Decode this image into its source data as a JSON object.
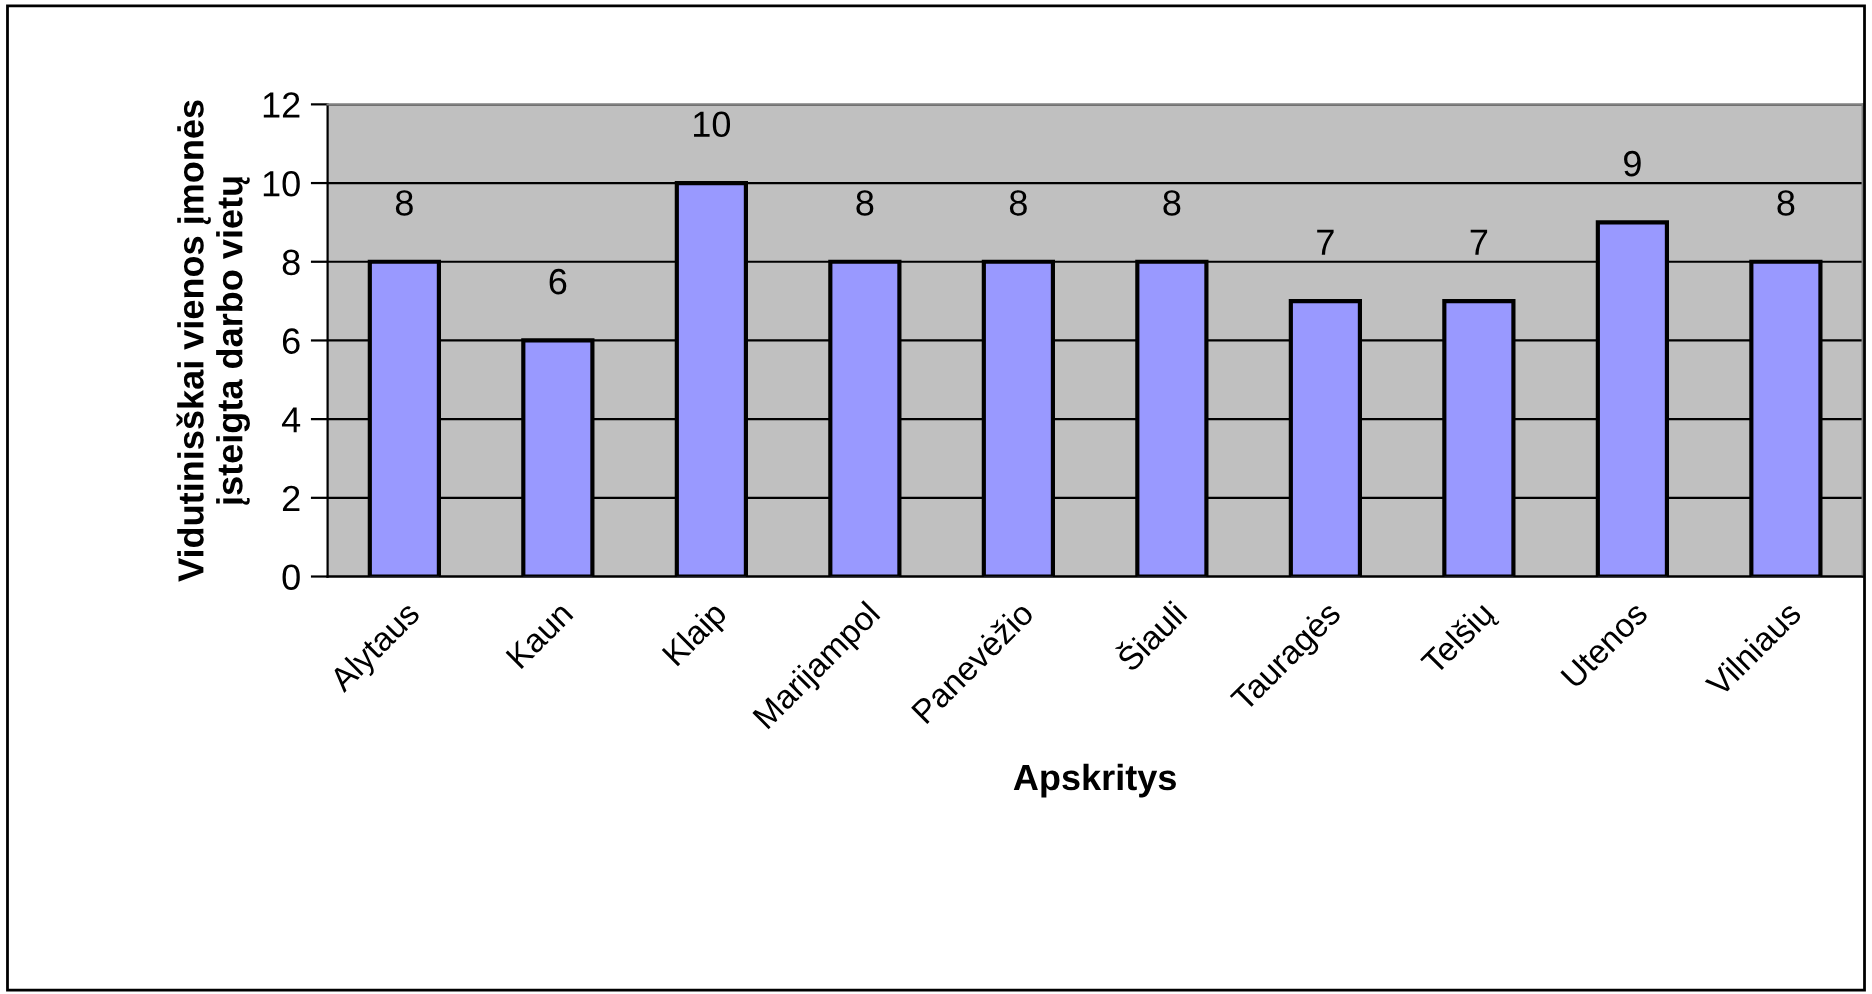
{
  "chart_data": {
    "type": "bar",
    "xlabel": "Apskritys",
    "ylabel": "Vidutinisškai vienos įmonės\nįsteigta darbo vietų",
    "categories": [
      "Alytaus",
      "Kaun",
      "Klaip",
      "Marijampol",
      "Panevėžio",
      "Šiauli",
      "Tauragės",
      "Telšių",
      "Utenos",
      "Vilniaus"
    ],
    "values": [
      8,
      6,
      10,
      8,
      8,
      8,
      7,
      7,
      9,
      8
    ],
    "color": "#9999ff",
    "ylim": [
      0,
      12
    ],
    "yticks": [
      0,
      2,
      4,
      6,
      8,
      10,
      12
    ],
    "grid": "y",
    "data_labels": true
  }
}
